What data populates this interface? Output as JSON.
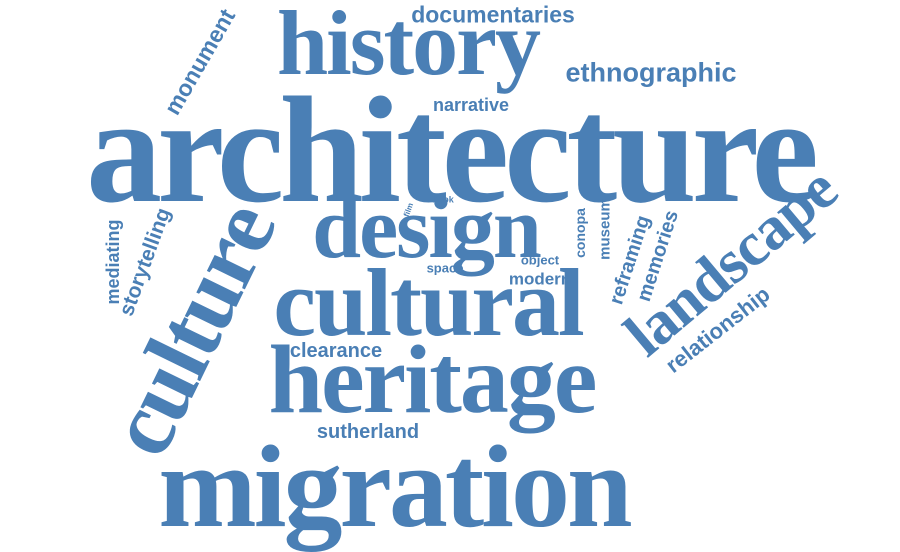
{
  "cloud": {
    "color": "#4a7fb5",
    "words": {
      "architecture": "architecture",
      "history": "history",
      "design": "design",
      "cultural": "cultural",
      "heritage": "heritage",
      "migration": "migration",
      "culture": "culture",
      "landscape": "landscape",
      "documentaries": "documentaries",
      "ethnographic": "ethnographic",
      "narrative": "narrative",
      "clearance": "clearance",
      "sutherland": "sutherland",
      "modern": "modern",
      "object": "object",
      "space": "space",
      "book": "book",
      "film": "film",
      "monument": "monument",
      "mediating": "mediating",
      "storytelling": "storytelling",
      "conopa": "conopa",
      "museum": "museum",
      "reframing": "reframing",
      "memories": "memories",
      "relationship": "relationship"
    }
  }
}
